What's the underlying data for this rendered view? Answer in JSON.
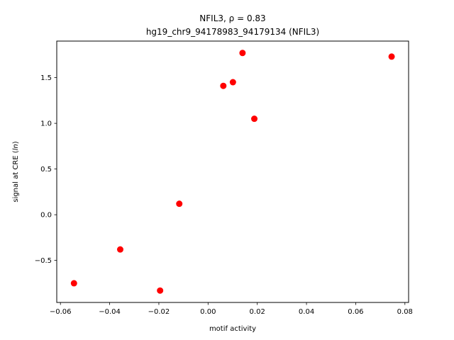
{
  "chart_data": {
    "type": "scatter",
    "title_line1": "NFIL3, ρ = 0.83",
    "title_line2": "hg19_chr9_94178983_94179134 (NFIL3)",
    "xlabel": "motif activity",
    "ylabel": "signal at CRE (ln)",
    "xlim": [
      -0.0615,
      0.0815
    ],
    "ylim": [
      -0.96,
      1.9
    ],
    "xticks": [
      -0.06,
      -0.04,
      -0.02,
      0.0,
      0.02,
      0.04,
      0.06,
      0.08
    ],
    "xtick_labels": [
      "−0.06",
      "−0.04",
      "−0.02",
      "0.00",
      "0.02",
      "0.04",
      "0.06",
      "0.08"
    ],
    "yticks": [
      -0.5,
      0.0,
      0.5,
      1.0,
      1.5
    ],
    "ytick_labels": [
      "−0.5",
      "0.0",
      "0.5",
      "1.0",
      "1.5"
    ],
    "grid": false,
    "marker_color": "#ff0000",
    "points": [
      {
        "x": -0.0545,
        "y": -0.75
      },
      {
        "x": -0.0357,
        "y": -0.38
      },
      {
        "x": -0.0195,
        "y": -0.83
      },
      {
        "x": -0.0117,
        "y": 0.12
      },
      {
        "x": 0.0062,
        "y": 1.41
      },
      {
        "x": 0.0101,
        "y": 1.45
      },
      {
        "x": 0.014,
        "y": 1.77
      },
      {
        "x": 0.0188,
        "y": 1.05
      },
      {
        "x": 0.0746,
        "y": 1.73
      }
    ]
  }
}
